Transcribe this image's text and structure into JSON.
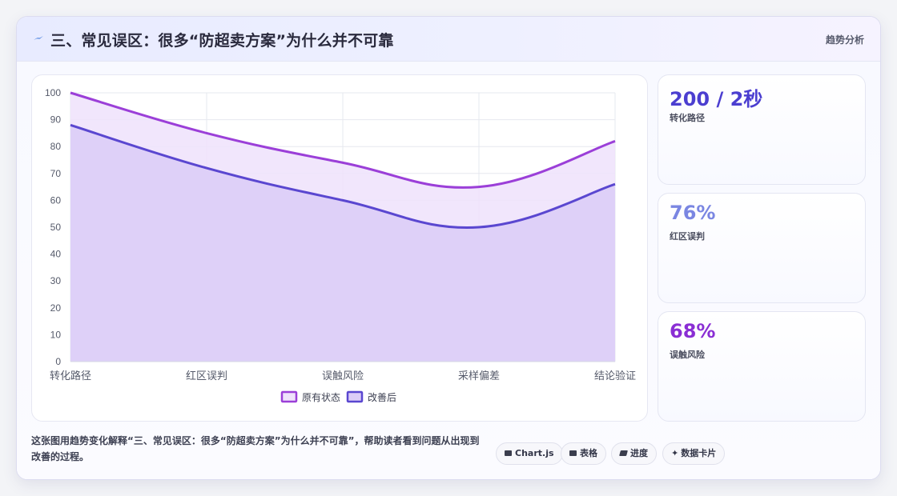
{
  "header": {
    "title": "三、常见误区：很多“防超卖方案”为什么并不可靠",
    "tag": "趋势分析",
    "icon": "lightning-icon"
  },
  "stats": [
    {
      "value": "200 / 2秒",
      "label": "转化路径",
      "color": "#4b3ed0"
    },
    {
      "value": "76%",
      "label": "红区误判",
      "color": "#7a86e2"
    },
    {
      "value": "68%",
      "label": "误触风险",
      "color": "#8a2ed4"
    }
  ],
  "description": "这张图用趋势变化解释“三、常见误区：很多“防超卖方案”为什么并不可靠”，帮助读者看到问题从出现到改善的过程。",
  "chips": [
    {
      "label": "Chart.js",
      "icon": "chart-icon"
    },
    {
      "label": "表格",
      "icon": "table-icon"
    },
    {
      "label": "进度",
      "icon": "progress-icon"
    },
    {
      "label": "数据卡片",
      "icon": "sparkle-icon"
    }
  ],
  "chart_data": {
    "type": "area",
    "categories": [
      "转化路径",
      "红区误判",
      "误触风险",
      "采样偏差",
      "结论验证"
    ],
    "ylim": [
      0,
      100
    ],
    "yticks": [
      0,
      10,
      20,
      30,
      40,
      50,
      60,
      70,
      80,
      90,
      100
    ],
    "grid": true,
    "legend_position": "bottom",
    "series": [
      {
        "name": "原有状态",
        "values": [
          100,
          85,
          74,
          65,
          82
        ],
        "color": "#9b3fd8",
        "fill": "#efe2fb"
      },
      {
        "name": "改善后",
        "values": [
          88,
          72,
          60,
          50,
          66
        ],
        "color": "#5a47d0",
        "fill": "#dccdf7"
      }
    ]
  }
}
